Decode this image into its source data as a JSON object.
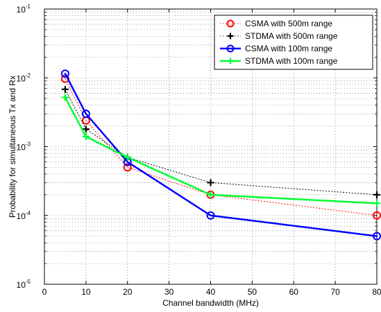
{
  "chart_data": {
    "type": "line",
    "xlabel": "Channel bandwidth (MHz)",
    "ylabel": "Probability for simultaneous Tx and Rx",
    "xlim": [
      0,
      80
    ],
    "ylim_exponent": [
      -5,
      -1
    ],
    "yscale": "log",
    "grid": true,
    "legend_position": "top-right",
    "x_ticks": [
      "0",
      "10",
      "20",
      "30",
      "40",
      "50",
      "60",
      "70",
      "80"
    ],
    "y_ticks": [
      {
        "base": "10",
        "exp": "-5",
        "value": 1e-05
      },
      {
        "base": "10",
        "exp": "-4",
        "value": 0.0001
      },
      {
        "base": "10",
        "exp": "-3",
        "value": 0.001
      },
      {
        "base": "10",
        "exp": "-2",
        "value": 0.01
      },
      {
        "base": "10",
        "exp": "-1",
        "value": 0.1
      }
    ],
    "series": [
      {
        "name": "CSMA with 500m range",
        "color": "#ff0000",
        "line": "dotted",
        "line_width": 1,
        "marker": "circle",
        "x": [
          5,
          10,
          20,
          40,
          80
        ],
        "y": [
          0.0097,
          0.0024,
          0.0005,
          0.0002,
          0.0001
        ]
      },
      {
        "name": "STDMA with 500m range",
        "color": "#000000",
        "line": "dotted",
        "line_width": 1,
        "marker": "plus",
        "x": [
          5,
          10,
          20,
          40,
          80
        ],
        "y": [
          0.0068,
          0.0018,
          0.0007,
          0.0003,
          0.0002
        ]
      },
      {
        "name": "CSMA with 100m range",
        "color": "#0000ff",
        "line": "solid",
        "line_width": 2.5,
        "marker": "circle",
        "x": [
          5,
          10,
          20,
          40,
          80
        ],
        "y": [
          0.0115,
          0.003,
          0.0006,
          0.0001,
          5e-05
        ]
      },
      {
        "name": "STDMA with 100m range",
        "color": "#00ff33",
        "line": "solid",
        "line_width": 2.5,
        "marker": "plus",
        "x": [
          5,
          10,
          20,
          40,
          80
        ],
        "y": [
          0.0052,
          0.0014,
          0.0007,
          0.0002,
          0.00015
        ]
      }
    ]
  }
}
